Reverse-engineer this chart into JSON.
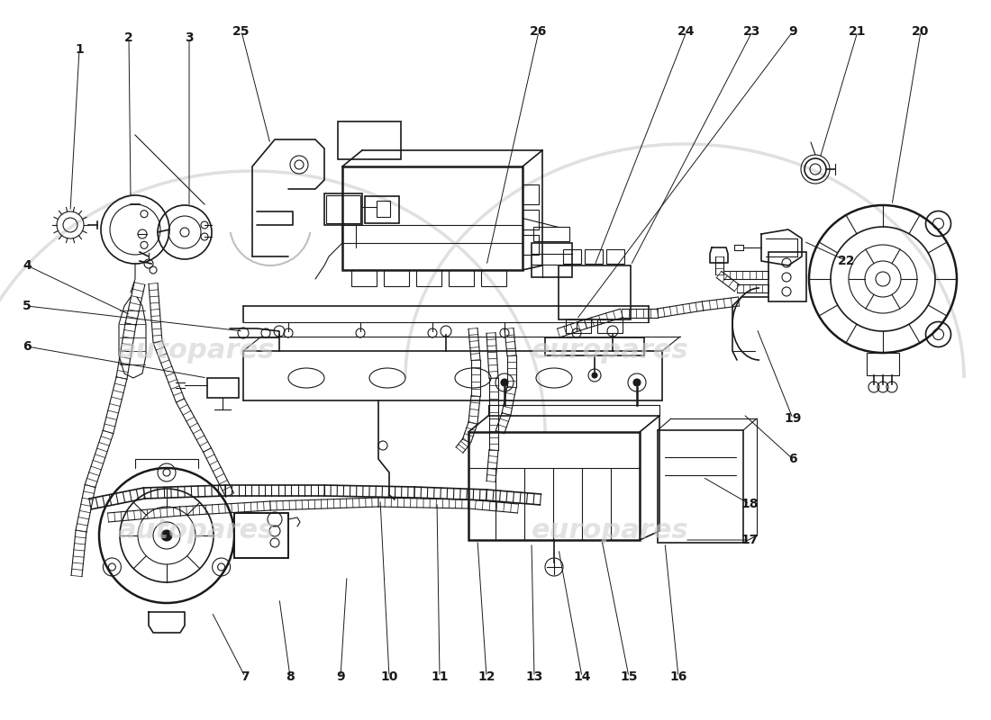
{
  "bg_color": "#ffffff",
  "line_color": "#1a1a1a",
  "watermark_color": "#cccccc",
  "labels_top": [
    [
      "1",
      88,
      55
    ],
    [
      "2",
      143,
      42
    ],
    [
      "3",
      210,
      42
    ],
    [
      "25",
      270,
      35
    ]
  ],
  "labels_top_right": [
    [
      "26",
      598,
      35
    ],
    [
      "24",
      762,
      35
    ],
    [
      "23",
      835,
      35
    ],
    [
      "9",
      880,
      35
    ],
    [
      "21",
      952,
      35
    ],
    [
      "20",
      1022,
      35
    ]
  ],
  "labels_right": [
    [
      "19",
      880,
      465
    ],
    [
      "6",
      880,
      510
    ],
    [
      "18",
      832,
      560
    ],
    [
      "17",
      832,
      600
    ]
  ],
  "labels_left": [
    [
      "4",
      30,
      295
    ],
    [
      "5",
      30,
      340
    ],
    [
      "6",
      30,
      385
    ]
  ],
  "labels_bottom": [
    [
      "7",
      272,
      755
    ],
    [
      "8",
      322,
      755
    ],
    [
      "9",
      378,
      755
    ],
    [
      "10",
      432,
      755
    ],
    [
      "11",
      488,
      755
    ],
    [
      "12",
      540,
      755
    ],
    [
      "13",
      593,
      755
    ],
    [
      "14",
      646,
      755
    ],
    [
      "15",
      698,
      755
    ],
    [
      "16",
      753,
      755
    ]
  ],
  "labels_right2": [
    [
      "22",
      940,
      290
    ]
  ]
}
